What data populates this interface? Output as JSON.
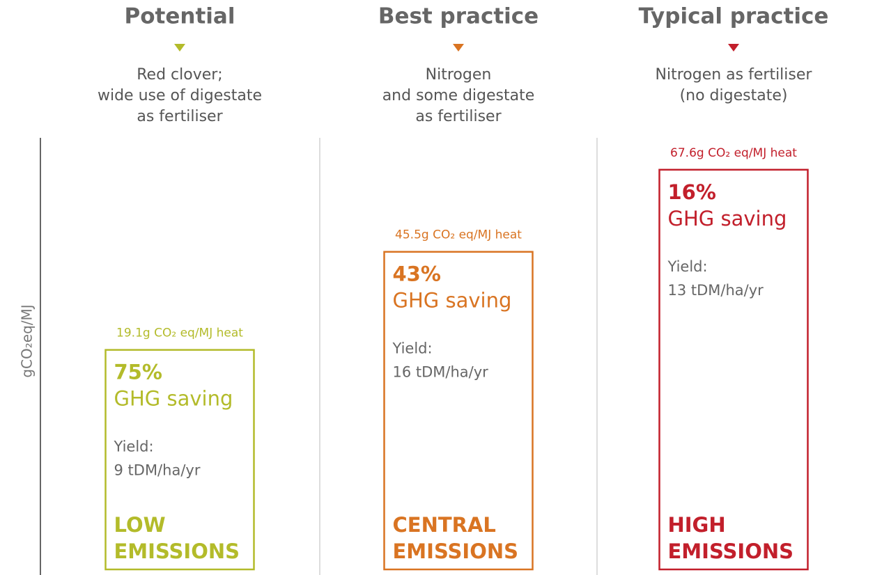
{
  "chart_data": {
    "type": "bar",
    "categories": [
      "Potential",
      "Best practice",
      "Typical practice"
    ],
    "descriptions": [
      [
        "Red clover;",
        "wide use of digestate",
        "as fertiliser"
      ],
      [
        "Nitrogen",
        "and some digestate",
        "as fertiliser"
      ],
      [
        "Nitrogen as fertiliser",
        "(no digestate)"
      ]
    ],
    "values": [
      19.1,
      45.5,
      67.6
    ],
    "value_labels": [
      "19.1g CO₂ eq/MJ heat",
      "45.5g CO₂ eq/MJ heat",
      "67.6g CO₂ eq/MJ heat"
    ],
    "colors": [
      "#b3bb2a",
      "#d97422",
      "#c21f2b"
    ],
    "savings": [
      {
        "value": 75,
        "label": "75%"
      },
      {
        "value": 43,
        "label": "43%"
      },
      {
        "value": 16,
        "label": "16%"
      }
    ],
    "saving_label": "GHG saving",
    "yield_label": "Yield:",
    "yields": [
      "9 tDM/ha/yr",
      "16 tDM/ha/yr",
      "13 tDM/ha/yr"
    ],
    "emission_labels": [
      [
        "LOW",
        "EMISSIONS"
      ],
      [
        "CENTRAL",
        "EMISSIONS"
      ],
      [
        "HIGH",
        "EMISSIONS"
      ]
    ],
    "ylabel": "gCO₂eq/MJ",
    "ylim": [
      -40,
      70
    ]
  }
}
